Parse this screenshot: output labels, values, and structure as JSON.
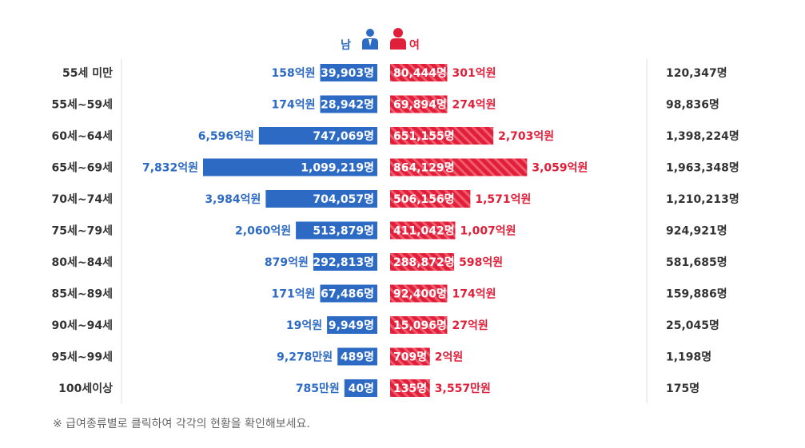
{
  "legend": {
    "male_label": "남",
    "female_label": "여"
  },
  "footnote": "※ 급여종류별로 클릭하여 각각의 현황을 확인해보세요.",
  "colors": {
    "male": "#2d6ac4",
    "female": "#e0203a",
    "female_stripe": "#f25a6e",
    "text": "#333333"
  },
  "icons": {
    "male": "male-person-icon",
    "female": "female-person-icon"
  },
  "chart_data": {
    "type": "bar",
    "orientation": "horizontal-butterfly",
    "categories": [
      "55세 미만",
      "55세~59세",
      "60세~64세",
      "65세~69세",
      "70세~74세",
      "75세~79세",
      "80세~84세",
      "85세~89세",
      "90세~94세",
      "95세~99세",
      "100세이상"
    ],
    "male_count": [
      39903,
      28942,
      747069,
      1099219,
      704057,
      513879,
      292813,
      67486,
      9949,
      489,
      40
    ],
    "female_count": [
      80444,
      69894,
      651155,
      864129,
      506156,
      411042,
      288872,
      92400,
      15096,
      709,
      135
    ],
    "male_count_labels": [
      "39,903명",
      "28,942명",
      "747,069명",
      "1,099,219명",
      "704,057명",
      "513,879명",
      "292,813명",
      "67,486명",
      "9,949명",
      "489명",
      "40명"
    ],
    "female_count_labels": [
      "80,444명",
      "69,894명",
      "651,155명",
      "864,129명",
      "506,156명",
      "411,042명",
      "288,872명",
      "92,400명",
      "15,096명",
      "709명",
      "135명"
    ],
    "male_amount_labels": [
      "158억원",
      "174억원",
      "6,596억원",
      "7,832억원",
      "3,984억원",
      "2,060억원",
      "879억원",
      "171억원",
      "19억원",
      "9,278만원",
      "785만원"
    ],
    "female_amount_labels": [
      "301억원",
      "274억원",
      "2,703억원",
      "3,059억원",
      "1,571억원",
      "1,007억원",
      "598억원",
      "174억원",
      "27억원",
      "2억원",
      "3,557만원"
    ],
    "total_labels": [
      "120,347명",
      "98,836명",
      "1,398,224명",
      "1,963,348명",
      "1,210,213명",
      "924,921명",
      "581,685명",
      "159,886명",
      "25,045명",
      "1,198명",
      "175명"
    ]
  }
}
